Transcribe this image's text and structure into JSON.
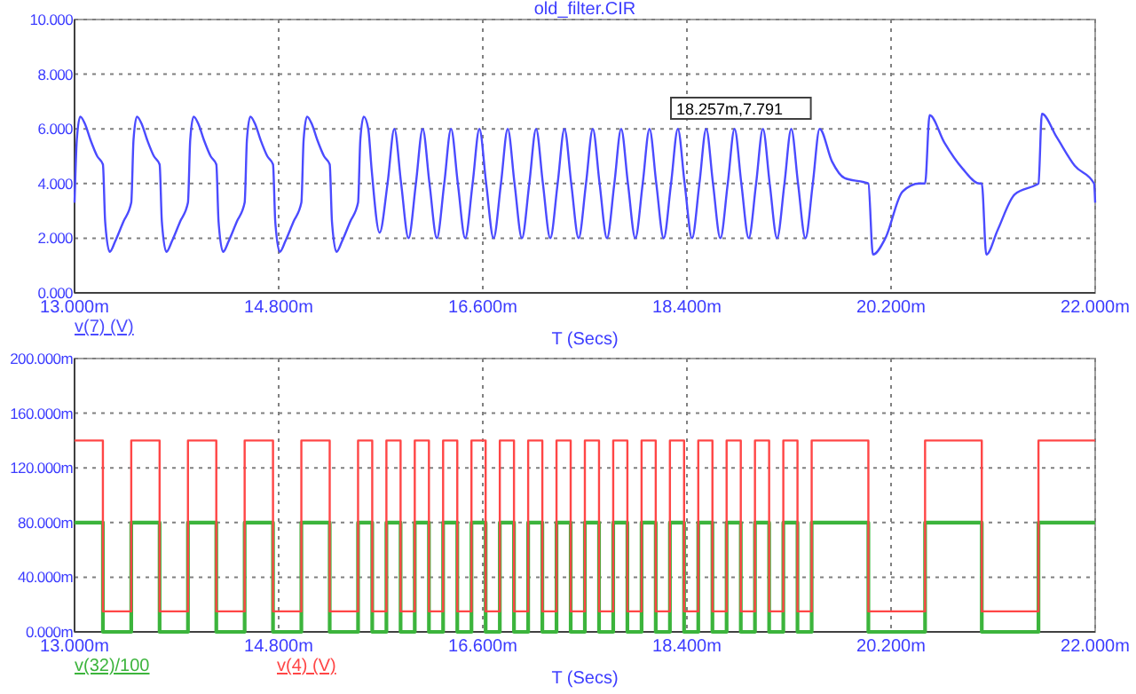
{
  "chart_data": [
    {
      "type": "line",
      "title": "old_filter.CIR",
      "xlabel": "T (Secs)",
      "legend": "bottom left",
      "grid": true,
      "line_style": "solid",
      "annotations": [
        "18.257m,7.791"
      ],
      "xlim": [
        13,
        22
      ],
      "xticks": [
        {
          "value": 13,
          "label": "13.000m"
        },
        {
          "value": 14.8,
          "label": "14.800m"
        },
        {
          "value": 16.6,
          "label": "16.600m"
        },
        {
          "value": 18.4,
          "label": "18.400m"
        },
        {
          "value": 20.2,
          "label": "20.200m"
        },
        {
          "value": 22,
          "label": "22.000m"
        }
      ],
      "ylim": [
        0,
        10
      ],
      "yticks": [
        {
          "value": 0,
          "label": "0.000"
        },
        {
          "value": 2,
          "label": "2.000"
        },
        {
          "value": 4,
          "label": "4.000"
        },
        {
          "value": 6,
          "label": "6.000"
        },
        {
          "value": 8,
          "label": "8.000"
        },
        {
          "value": 10,
          "label": "10.000"
        }
      ],
      "series": [
        {
          "name": "v(7) (V)",
          "color": "#4b4bff",
          "x": [
            13,
            13.02,
            13.05,
            13.09,
            13.14,
            13.2,
            13.25,
            13.27,
            13.31,
            13.36,
            13.43,
            13.5,
            13.52,
            13.55,
            13.59,
            13.64,
            13.7,
            13.75,
            13.77,
            13.81,
            13.86,
            13.93,
            14,
            14.02,
            14.05,
            14.09,
            14.14,
            14.2,
            14.25,
            14.27,
            14.31,
            14.36,
            14.43,
            14.5,
            14.52,
            14.55,
            14.59,
            14.64,
            14.7,
            14.75,
            14.77,
            14.81,
            14.86,
            14.93,
            15,
            15.02,
            15.05,
            15.09,
            15.14,
            15.2,
            15.25,
            15.27,
            15.31,
            15.36,
            15.43,
            15.5,
            15.52,
            15.55,
            15.59,
            15.62,
            15.69,
            15.76,
            15.82,
            15.88,
            15.945,
            16.01,
            16.07,
            16.13,
            16.195,
            16.26,
            16.32,
            16.38,
            16.445,
            16.51,
            16.57,
            16.63,
            16.695,
            16.76,
            16.82,
            16.88,
            16.945,
            17.01,
            17.07,
            17.13,
            17.195,
            17.26,
            17.32,
            17.38,
            17.445,
            17.51,
            17.57,
            17.63,
            17.695,
            17.76,
            17.82,
            17.88,
            17.945,
            18.01,
            18.07,
            18.13,
            18.195,
            18.26,
            18.32,
            18.38,
            18.445,
            18.51,
            18.57,
            18.63,
            18.695,
            18.76,
            18.82,
            18.88,
            18.945,
            19.01,
            19.07,
            19.13,
            19.195,
            19.26,
            19.32,
            19.38,
            19.445,
            19.51,
            19.57,
            19.68,
            19.79,
            19.96,
            20,
            20.04,
            20.15,
            20.3,
            20.45,
            20.5,
            20.54,
            20.67,
            20.83,
            20.98,
            21,
            21.04,
            21.14,
            21.29,
            21.48,
            21.5,
            21.53,
            21.66,
            21.82,
            21.99,
            22
          ],
          "values": [
            3.3,
            5.6,
            6.45,
            6.2,
            5.6,
            5,
            4.7,
            2.6,
            1.5,
            1.9,
            2.6,
            3.3,
            5.6,
            6.45,
            6.2,
            5.6,
            5,
            4.7,
            2.6,
            1.5,
            1.9,
            2.6,
            3.3,
            5.6,
            6.45,
            6.2,
            5.6,
            5,
            4.7,
            2.6,
            1.5,
            1.9,
            2.6,
            3.3,
            5.6,
            6.45,
            6.2,
            5.6,
            5,
            4.7,
            2.6,
            1.5,
            1.9,
            2.6,
            3.3,
            5.6,
            6.45,
            6.2,
            5.6,
            5,
            4.7,
            2.6,
            1.5,
            1.9,
            2.6,
            3.3,
            5.6,
            6.45,
            6,
            4.5,
            2.2,
            4,
            6,
            4,
            2,
            4,
            6,
            4,
            2,
            4,
            6,
            4,
            2,
            4,
            6,
            4,
            2,
            4,
            6,
            4,
            2,
            4,
            6,
            4,
            2,
            4,
            6,
            4,
            2,
            4,
            6,
            4,
            2,
            4,
            6,
            4,
            2,
            4,
            6,
            4,
            2,
            4,
            6,
            4,
            2,
            4,
            6,
            4,
            2,
            4,
            6,
            4,
            2,
            4,
            6,
            4,
            2,
            4,
            6,
            4,
            2,
            4,
            6,
            4.8,
            4.2,
            4.05,
            4,
            1.4,
            2,
            3.7,
            4,
            4,
            6.5,
            5.5,
            4.55,
            4,
            4,
            1.4,
            2.3,
            3.6,
            3.95,
            4,
            6.55,
            5.7,
            4.65,
            4,
            3.3
          ]
        }
      ]
    },
    {
      "type": "step",
      "xlabel": "T (Secs)",
      "legend": "bottom left",
      "grid": true,
      "line_style": "solid",
      "xlim": [
        13,
        22
      ],
      "xticks": [
        {
          "value": 13,
          "label": "13.000m"
        },
        {
          "value": 14.8,
          "label": "14.800m"
        },
        {
          "value": 16.6,
          "label": "16.600m"
        },
        {
          "value": 18.4,
          "label": "18.400m"
        },
        {
          "value": 20.2,
          "label": "20.200m"
        },
        {
          "value": 22,
          "label": "22.000m"
        }
      ],
      "ylim": [
        0,
        200
      ],
      "yticks": [
        {
          "value": 0,
          "label": "0.000m"
        },
        {
          "value": 40,
          "label": "40.000m"
        },
        {
          "value": 80,
          "label": "80.000m"
        },
        {
          "value": 120,
          "label": "120.000m"
        },
        {
          "value": 160,
          "label": "160.000m"
        },
        {
          "value": 200,
          "label": "200.000m"
        }
      ],
      "x": [
        13,
        13.25,
        13.5,
        13.75,
        14,
        14.25,
        14.5,
        14.75,
        15,
        15.25,
        15.5,
        15.625,
        15.75,
        15.875,
        16,
        16.125,
        16.25,
        16.375,
        16.5,
        16.625,
        16.75,
        16.875,
        17,
        17.125,
        17.25,
        17.375,
        17.5,
        17.625,
        17.75,
        17.875,
        18,
        18.125,
        18.25,
        18.375,
        18.5,
        18.625,
        18.75,
        18.875,
        19,
        19.125,
        19.25,
        19.375,
        19.5,
        20,
        20.5,
        21,
        21.5,
        22
      ],
      "series": [
        {
          "name": "v(32)/100",
          "color": "#3cb43c",
          "values": [
            80,
            0,
            80,
            0,
            80,
            0,
            80,
            0,
            80,
            0,
            80,
            0,
            80,
            0,
            80,
            0,
            80,
            0,
            80,
            0,
            80,
            0,
            80,
            0,
            80,
            0,
            80,
            0,
            80,
            0,
            80,
            0,
            80,
            0,
            80,
            0,
            80,
            0,
            80,
            0,
            80,
            0,
            80,
            0,
            80,
            0,
            80,
            80
          ]
        },
        {
          "name": "v(4) (V)",
          "color": "#ff4646",
          "values": [
            140,
            15,
            140,
            15,
            140,
            15,
            140,
            15,
            140,
            15,
            140,
            15,
            140,
            15,
            140,
            15,
            140,
            15,
            140,
            15,
            140,
            15,
            140,
            15,
            140,
            15,
            140,
            15,
            140,
            15,
            140,
            15,
            140,
            15,
            140,
            15,
            140,
            15,
            140,
            15,
            140,
            15,
            140,
            15,
            140,
            15,
            140,
            140
          ]
        }
      ]
    }
  ]
}
